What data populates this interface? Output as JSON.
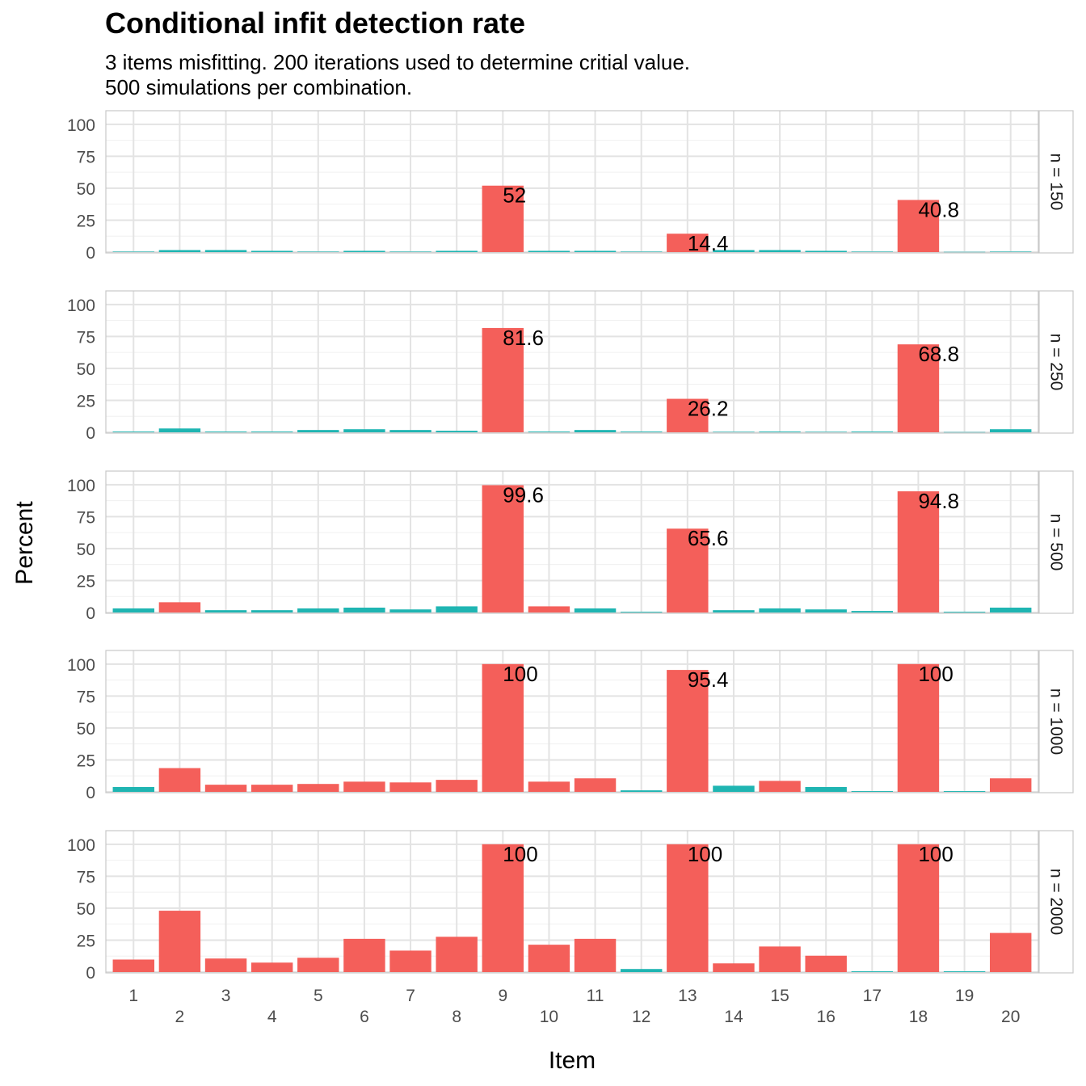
{
  "chart_data": {
    "type": "bar",
    "title": "Conditional infit detection rate",
    "subtitle_lines": [
      "3 items misfitting. 200 iterations used to determine critial value.",
      "500 simulations per combination."
    ],
    "xlabel": "Item",
    "ylabel": "Percent",
    "ylim": [
      0,
      110
    ],
    "yticks": [
      0,
      25,
      50,
      75,
      100
    ],
    "categories": [
      "1",
      "2",
      "3",
      "4",
      "5",
      "6",
      "7",
      "8",
      "9",
      "10",
      "11",
      "12",
      "13",
      "14",
      "15",
      "16",
      "17",
      "18",
      "19",
      "20"
    ],
    "colors": {
      "detected": "#F45F5A",
      "not_detected": "#1FB5B2"
    },
    "facets": [
      {
        "label": "n = 150",
        "values": [
          0.4,
          1.6,
          1.6,
          1.0,
          0.4,
          1.0,
          0.4,
          1.0,
          52,
          1.0,
          1.0,
          0.4,
          14.4,
          1.6,
          1.6,
          1.0,
          0.4,
          40.8,
          0.2,
          0.4
        ],
        "color_group": [
          "not_detected",
          "not_detected",
          "not_detected",
          "not_detected",
          "not_detected",
          "not_detected",
          "not_detected",
          "not_detected",
          "detected",
          "not_detected",
          "not_detected",
          "not_detected",
          "detected",
          "not_detected",
          "not_detected",
          "not_detected",
          "not_detected",
          "detected",
          "not_detected",
          "not_detected"
        ],
        "annotations": [
          {
            "item": "9",
            "text": "52"
          },
          {
            "item": "13",
            "text": "14.4"
          },
          {
            "item": "18",
            "text": "40.8"
          }
        ]
      },
      {
        "label": "n = 250",
        "values": [
          0.6,
          3.0,
          0.6,
          0.6,
          1.8,
          2.4,
          1.8,
          1.2,
          81.6,
          0.6,
          1.8,
          0.6,
          26.2,
          0.4,
          0.6,
          0.4,
          0.6,
          68.8,
          0.2,
          2.4
        ],
        "color_group": [
          "not_detected",
          "not_detected",
          "not_detected",
          "not_detected",
          "not_detected",
          "not_detected",
          "not_detected",
          "not_detected",
          "detected",
          "not_detected",
          "not_detected",
          "not_detected",
          "detected",
          "not_detected",
          "not_detected",
          "not_detected",
          "not_detected",
          "detected",
          "not_detected",
          "not_detected"
        ],
        "annotations": [
          {
            "item": "9",
            "text": "81.6"
          },
          {
            "item": "13",
            "text": "26.2"
          },
          {
            "item": "18",
            "text": "68.8"
          }
        ]
      },
      {
        "label": "n = 500",
        "values": [
          3.2,
          8.0,
          1.8,
          1.8,
          3.2,
          3.8,
          2.4,
          4.8,
          99.6,
          4.8,
          3.2,
          0.6,
          65.6,
          1.8,
          3.2,
          2.4,
          1.2,
          94.8,
          0.6,
          3.8
        ],
        "color_group": [
          "not_detected",
          "detected",
          "not_detected",
          "not_detected",
          "not_detected",
          "not_detected",
          "not_detected",
          "not_detected",
          "detected",
          "detected",
          "not_detected",
          "not_detected",
          "detected",
          "not_detected",
          "not_detected",
          "not_detected",
          "not_detected",
          "detected",
          "not_detected",
          "not_detected"
        ],
        "annotations": [
          {
            "item": "9",
            "text": "99.6"
          },
          {
            "item": "13",
            "text": "65.6"
          },
          {
            "item": "18",
            "text": "94.8"
          }
        ]
      },
      {
        "label": "n = 1000",
        "values": [
          3.8,
          18.6,
          5.6,
          5.6,
          6.2,
          8.0,
          7.4,
          9.4,
          100,
          8.0,
          10.6,
          1.2,
          95.4,
          4.8,
          8.6,
          3.8,
          0.6,
          100,
          0.6,
          10.6
        ],
        "color_group": [
          "not_detected",
          "detected",
          "detected",
          "detected",
          "detected",
          "detected",
          "detected",
          "detected",
          "detected",
          "detected",
          "detected",
          "not_detected",
          "detected",
          "not_detected",
          "detected",
          "not_detected",
          "not_detected",
          "detected",
          "not_detected",
          "detected"
        ],
        "annotations": [
          {
            "item": "9",
            "text": "100"
          },
          {
            "item": "13",
            "text": "95.4"
          },
          {
            "item": "18",
            "text": "100"
          }
        ]
      },
      {
        "label": "n = 2000",
        "values": [
          9.8,
          48.0,
          10.6,
          7.4,
          11.2,
          26.0,
          16.8,
          27.6,
          100,
          21.4,
          26.0,
          2.4,
          100,
          6.8,
          20.0,
          12.8,
          0.6,
          100,
          0.6,
          30.6
        ],
        "color_group": [
          "detected",
          "detected",
          "detected",
          "detected",
          "detected",
          "detected",
          "detected",
          "detected",
          "detected",
          "detected",
          "detected",
          "not_detected",
          "detected",
          "detected",
          "detected",
          "detected",
          "not_detected",
          "detected",
          "not_detected",
          "detected"
        ],
        "annotations": [
          {
            "item": "9",
            "text": "100"
          },
          {
            "item": "13",
            "text": "100"
          },
          {
            "item": "18",
            "text": "100"
          }
        ]
      }
    ],
    "grid": true,
    "legend": "none"
  }
}
